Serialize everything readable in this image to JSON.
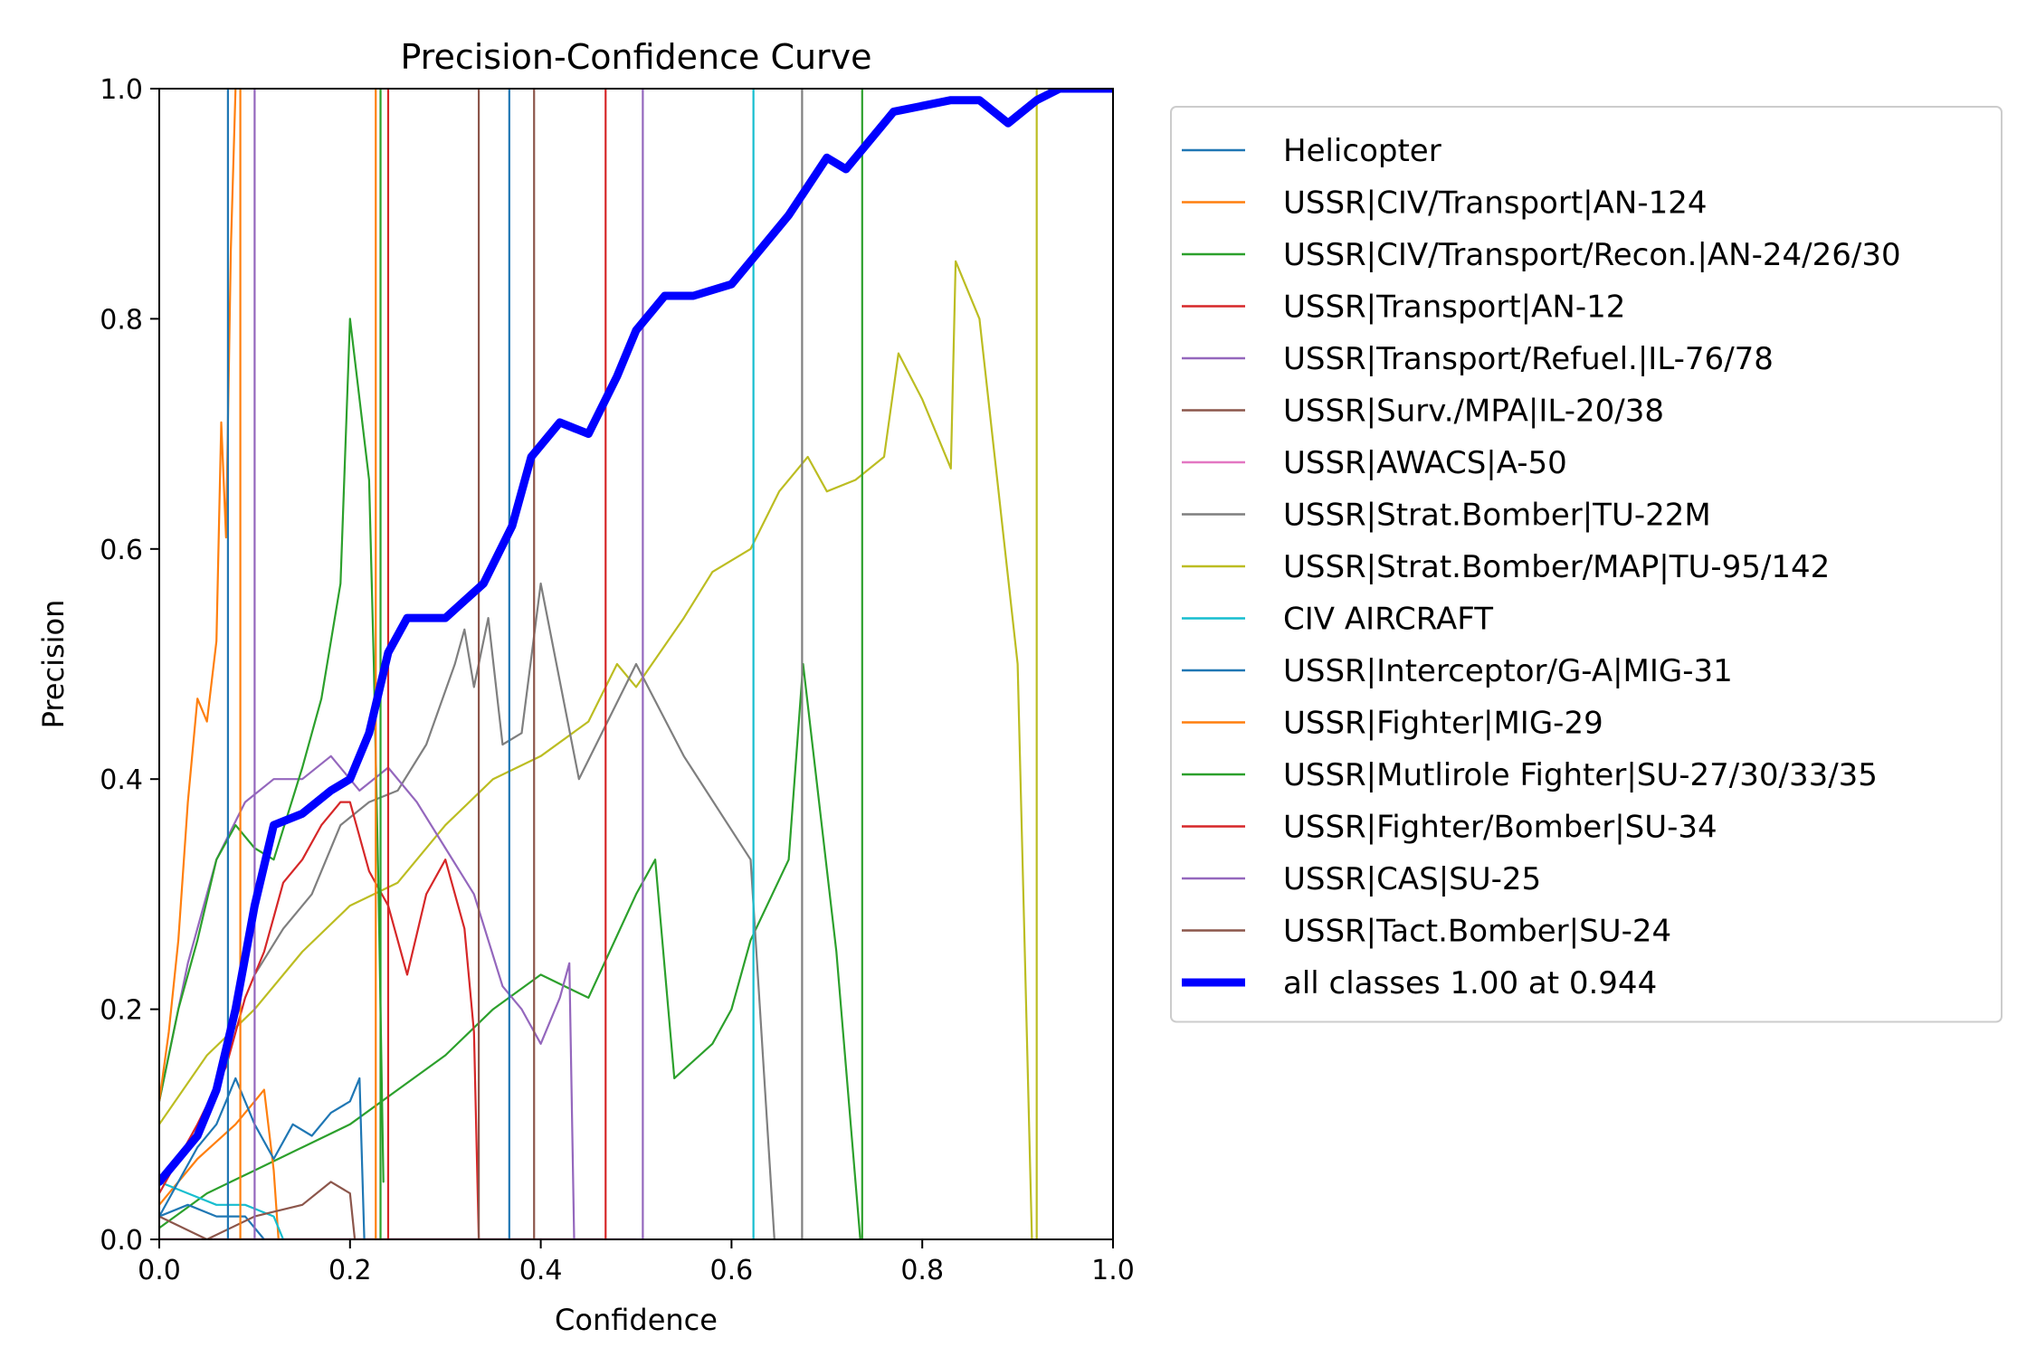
{
  "chart_data": {
    "type": "line",
    "title": "Precision-Confidence Curve",
    "xlabel": "Confidence",
    "ylabel": "Precision",
    "xlim": [
      0,
      1
    ],
    "ylim": [
      0,
      1
    ],
    "xticks": [
      "0.0",
      "0.2",
      "0.4",
      "0.6",
      "0.8",
      "1.0"
    ],
    "yticks": [
      "0.0",
      "0.2",
      "0.4",
      "0.6",
      "0.8",
      "1.0"
    ],
    "grid": false,
    "legend_position": "outside-right",
    "series": [
      {
        "name": "Helicopter",
        "color": "#1f77b4",
        "points": [
          [
            0.0,
            0.02
          ],
          [
            0.02,
            0.05
          ],
          [
            0.04,
            0.08
          ],
          [
            0.06,
            0.1
          ],
          [
            0.07,
            0.12
          ],
          [
            0.08,
            0.14
          ],
          [
            0.09,
            0.12
          ],
          [
            0.1,
            0.1
          ],
          [
            0.12,
            0.07
          ],
          [
            0.14,
            0.1
          ],
          [
            0.16,
            0.09
          ],
          [
            0.18,
            0.11
          ],
          [
            0.2,
            0.12
          ],
          [
            0.21,
            0.14
          ],
          [
            0.215,
            0.0
          ]
        ]
      },
      {
        "name": "USSR|CIV/Transport|AN-124",
        "color": "#ff7f0e",
        "points": [
          [
            0.0,
            0.12
          ],
          [
            0.01,
            0.18
          ],
          [
            0.02,
            0.26
          ],
          [
            0.03,
            0.38
          ],
          [
            0.04,
            0.47
          ],
          [
            0.05,
            0.45
          ],
          [
            0.06,
            0.52
          ],
          [
            0.065,
            0.71
          ],
          [
            0.07,
            0.61
          ],
          [
            0.075,
            0.86
          ],
          [
            0.08,
            1.0
          ]
        ]
      },
      {
        "name": "USSR|CIV/Transport/Recon.|AN-24/26/30",
        "color": "#2ca02c",
        "points": [
          [
            0.0,
            0.12
          ],
          [
            0.02,
            0.2
          ],
          [
            0.04,
            0.26
          ],
          [
            0.06,
            0.33
          ],
          [
            0.08,
            0.36
          ],
          [
            0.1,
            0.34
          ],
          [
            0.12,
            0.33
          ],
          [
            0.15,
            0.41
          ],
          [
            0.17,
            0.47
          ],
          [
            0.19,
            0.57
          ],
          [
            0.2,
            0.8
          ],
          [
            0.22,
            0.66
          ],
          [
            0.225,
            0.5
          ],
          [
            0.23,
            0.3
          ],
          [
            0.235,
            0.05
          ]
        ]
      },
      {
        "name": "USSR|Transport|AN-12",
        "color": "#d62728",
        "points": [
          [
            0.0,
            0.04
          ],
          [
            0.04,
            0.1
          ],
          [
            0.07,
            0.15
          ],
          [
            0.09,
            0.21
          ],
          [
            0.11,
            0.25
          ],
          [
            0.12,
            0.28
          ],
          [
            0.13,
            0.31
          ],
          [
            0.15,
            0.33
          ],
          [
            0.17,
            0.36
          ],
          [
            0.19,
            0.38
          ],
          [
            0.2,
            0.38
          ],
          [
            0.22,
            0.32
          ],
          [
            0.24,
            0.29
          ],
          [
            0.26,
            0.23
          ],
          [
            0.28,
            0.3
          ],
          [
            0.3,
            0.33
          ],
          [
            0.32,
            0.27
          ],
          [
            0.33,
            0.18
          ],
          [
            0.335,
            0.0
          ]
        ]
      },
      {
        "name": "USSR|Transport/Refuel.|IL-76/78",
        "color": "#9467bd",
        "points": [
          [
            0.0,
            0.12
          ],
          [
            0.03,
            0.24
          ],
          [
            0.06,
            0.33
          ],
          [
            0.09,
            0.38
          ],
          [
            0.12,
            0.4
          ],
          [
            0.15,
            0.4
          ],
          [
            0.18,
            0.42
          ],
          [
            0.21,
            0.39
          ],
          [
            0.24,
            0.41
          ],
          [
            0.27,
            0.38
          ],
          [
            0.3,
            0.34
          ],
          [
            0.33,
            0.3
          ],
          [
            0.36,
            0.22
          ],
          [
            0.38,
            0.2
          ],
          [
            0.4,
            0.17
          ],
          [
            0.42,
            0.21
          ],
          [
            0.43,
            0.24
          ],
          [
            0.435,
            0.0
          ]
        ]
      },
      {
        "name": "USSR|Surv./MPA|IL-20/38",
        "color": "#8c564b",
        "points": [
          [
            0.0,
            0.02
          ],
          [
            0.05,
            0.0
          ],
          [
            0.1,
            0.02
          ],
          [
            0.15,
            0.03
          ],
          [
            0.18,
            0.05
          ],
          [
            0.2,
            0.04
          ],
          [
            0.205,
            0.0
          ]
        ]
      },
      {
        "name": "USSR|AWACS|A-50",
        "color": "#e377c2",
        "points": [
          [
            0.0,
            0.0
          ],
          [
            0.5,
            0.0
          ]
        ]
      },
      {
        "name": "USSR|Strat.Bomber|TU-22M",
        "color": "#7f7f7f",
        "points": [
          [
            0.1,
            0.23
          ],
          [
            0.13,
            0.27
          ],
          [
            0.16,
            0.3
          ],
          [
            0.19,
            0.36
          ],
          [
            0.22,
            0.38
          ],
          [
            0.25,
            0.39
          ],
          [
            0.28,
            0.43
          ],
          [
            0.31,
            0.5
          ],
          [
            0.32,
            0.53
          ],
          [
            0.33,
            0.48
          ],
          [
            0.345,
            0.54
          ],
          [
            0.36,
            0.43
          ],
          [
            0.38,
            0.44
          ],
          [
            0.4,
            0.57
          ],
          [
            0.44,
            0.4
          ],
          [
            0.5,
            0.5
          ],
          [
            0.55,
            0.42
          ],
          [
            0.62,
            0.33
          ],
          [
            0.645,
            0.0
          ]
        ]
      },
      {
        "name": "USSR|Strat.Bomber/MAP|TU-95/142",
        "color": "#bcbd22",
        "points": [
          [
            0.0,
            0.1
          ],
          [
            0.05,
            0.16
          ],
          [
            0.1,
            0.2
          ],
          [
            0.15,
            0.25
          ],
          [
            0.2,
            0.29
          ],
          [
            0.25,
            0.31
          ],
          [
            0.3,
            0.36
          ],
          [
            0.35,
            0.4
          ],
          [
            0.4,
            0.42
          ],
          [
            0.45,
            0.45
          ],
          [
            0.48,
            0.5
          ],
          [
            0.5,
            0.48
          ],
          [
            0.55,
            0.54
          ],
          [
            0.58,
            0.58
          ],
          [
            0.62,
            0.6
          ],
          [
            0.65,
            0.65
          ],
          [
            0.68,
            0.68
          ],
          [
            0.7,
            0.65
          ],
          [
            0.73,
            0.66
          ],
          [
            0.76,
            0.68
          ],
          [
            0.775,
            0.77
          ],
          [
            0.8,
            0.73
          ],
          [
            0.83,
            0.67
          ],
          [
            0.835,
            0.85
          ],
          [
            0.86,
            0.8
          ],
          [
            0.9,
            0.5
          ],
          [
            0.915,
            0.0
          ]
        ]
      },
      {
        "name": "CIV AIRCRAFT",
        "color": "#17becf",
        "points": [
          [
            0.0,
            0.05
          ],
          [
            0.03,
            0.04
          ],
          [
            0.06,
            0.03
          ],
          [
            0.09,
            0.03
          ],
          [
            0.12,
            0.02
          ],
          [
            0.13,
            0.0
          ]
        ]
      },
      {
        "name": "USSR|Interceptor/G-A|MIG-31",
        "color": "#1f77b4",
        "points": [
          [
            0.0,
            0.02
          ],
          [
            0.03,
            0.03
          ],
          [
            0.06,
            0.02
          ],
          [
            0.09,
            0.02
          ],
          [
            0.11,
            0.0
          ]
        ]
      },
      {
        "name": "USSR|Fighter|MIG-29",
        "color": "#ff7f0e",
        "points": [
          [
            0.0,
            0.03
          ],
          [
            0.04,
            0.07
          ],
          [
            0.08,
            0.1
          ],
          [
            0.1,
            0.12
          ],
          [
            0.11,
            0.13
          ],
          [
            0.12,
            0.06
          ],
          [
            0.125,
            0.0
          ]
        ]
      },
      {
        "name": "USSR|Mutlirole Fighter|SU-27/30/33/35",
        "color": "#2ca02c",
        "points": [
          [
            0.0,
            0.01
          ],
          [
            0.05,
            0.04
          ],
          [
            0.1,
            0.06
          ],
          [
            0.15,
            0.08
          ],
          [
            0.2,
            0.1
          ],
          [
            0.25,
            0.13
          ],
          [
            0.3,
            0.16
          ],
          [
            0.35,
            0.2
          ],
          [
            0.4,
            0.23
          ],
          [
            0.45,
            0.21
          ],
          [
            0.5,
            0.3
          ],
          [
            0.52,
            0.33
          ],
          [
            0.54,
            0.14
          ],
          [
            0.58,
            0.17
          ],
          [
            0.6,
            0.2
          ],
          [
            0.62,
            0.26
          ],
          [
            0.66,
            0.33
          ],
          [
            0.675,
            0.5
          ],
          [
            0.71,
            0.25
          ],
          [
            0.735,
            0.0
          ]
        ]
      },
      {
        "name": "USSR|Fighter/Bomber|SU-34",
        "color": "#d62728",
        "points": [
          [
            0.0,
            0.0
          ],
          [
            0.465,
            0.0
          ]
        ]
      },
      {
        "name": "USSR|CAS|SU-25",
        "color": "#9467bd",
        "points": [
          [
            0.0,
            0.0
          ],
          [
            0.505,
            0.0
          ]
        ]
      },
      {
        "name": "USSR|Tact.Bomber|SU-24",
        "color": "#8c564b",
        "points": [
          [
            0.0,
            0.0
          ],
          [
            0.39,
            0.0
          ]
        ]
      },
      {
        "name": "all classes 1.00 at 0.944",
        "color": "#0000ff",
        "bold": true,
        "points": [
          [
            0.0,
            0.05
          ],
          [
            0.02,
            0.07
          ],
          [
            0.04,
            0.09
          ],
          [
            0.06,
            0.13
          ],
          [
            0.08,
            0.2
          ],
          [
            0.1,
            0.29
          ],
          [
            0.12,
            0.36
          ],
          [
            0.15,
            0.37
          ],
          [
            0.18,
            0.39
          ],
          [
            0.2,
            0.4
          ],
          [
            0.22,
            0.44
          ],
          [
            0.24,
            0.51
          ],
          [
            0.26,
            0.54
          ],
          [
            0.3,
            0.54
          ],
          [
            0.34,
            0.57
          ],
          [
            0.37,
            0.62
          ],
          [
            0.39,
            0.68
          ],
          [
            0.42,
            0.71
          ],
          [
            0.45,
            0.7
          ],
          [
            0.48,
            0.75
          ],
          [
            0.5,
            0.79
          ],
          [
            0.53,
            0.82
          ],
          [
            0.56,
            0.82
          ],
          [
            0.6,
            0.83
          ],
          [
            0.63,
            0.86
          ],
          [
            0.66,
            0.89
          ],
          [
            0.7,
            0.94
          ],
          [
            0.72,
            0.93
          ],
          [
            0.75,
            0.96
          ],
          [
            0.77,
            0.98
          ],
          [
            0.8,
            0.985
          ],
          [
            0.83,
            0.99
          ],
          [
            0.86,
            0.99
          ],
          [
            0.89,
            0.97
          ],
          [
            0.92,
            0.99
          ],
          [
            0.944,
            1.0
          ],
          [
            1.0,
            1.0
          ]
        ]
      }
    ],
    "vertical_drops": [
      {
        "series": "Helicopter",
        "x": 0.072
      },
      {
        "series": "USSR|Interceptor/G-A|MIG-31",
        "x": 0.367
      },
      {
        "series": "USSR|CIV/Transport|AN-124",
        "x": 0.085
      },
      {
        "series": "USSR|Fighter|MIG-29",
        "x": 0.227
      },
      {
        "series": "USSR|CIV/Transport/Recon.|AN-24/26/30",
        "x": 0.232
      },
      {
        "series": "USSR|Mutlirole Fighter|SU-27/30/33/35",
        "x": 0.737
      },
      {
        "series": "USSR|Transport|AN-12",
        "x": 0.24
      },
      {
        "series": "USSR|Fighter/Bomber|SU-34",
        "x": 0.468
      },
      {
        "series": "USSR|Transport/Refuel.|IL-76/78",
        "x": 0.1
      },
      {
        "series": "USSR|CAS|SU-25",
        "x": 0.507
      },
      {
        "series": "USSR|Surv./MPA|IL-20/38",
        "x": 0.335
      },
      {
        "series": "USSR|Tact.Bomber|SU-24",
        "x": 0.393
      },
      {
        "series": "USSR|Strat.Bomber|TU-22M",
        "x": 0.674
      },
      {
        "series": "CIV AIRCRAFT",
        "x": 0.623
      },
      {
        "series": "USSR|Strat.Bomber/MAP|TU-95/142",
        "x": 0.92
      }
    ]
  }
}
